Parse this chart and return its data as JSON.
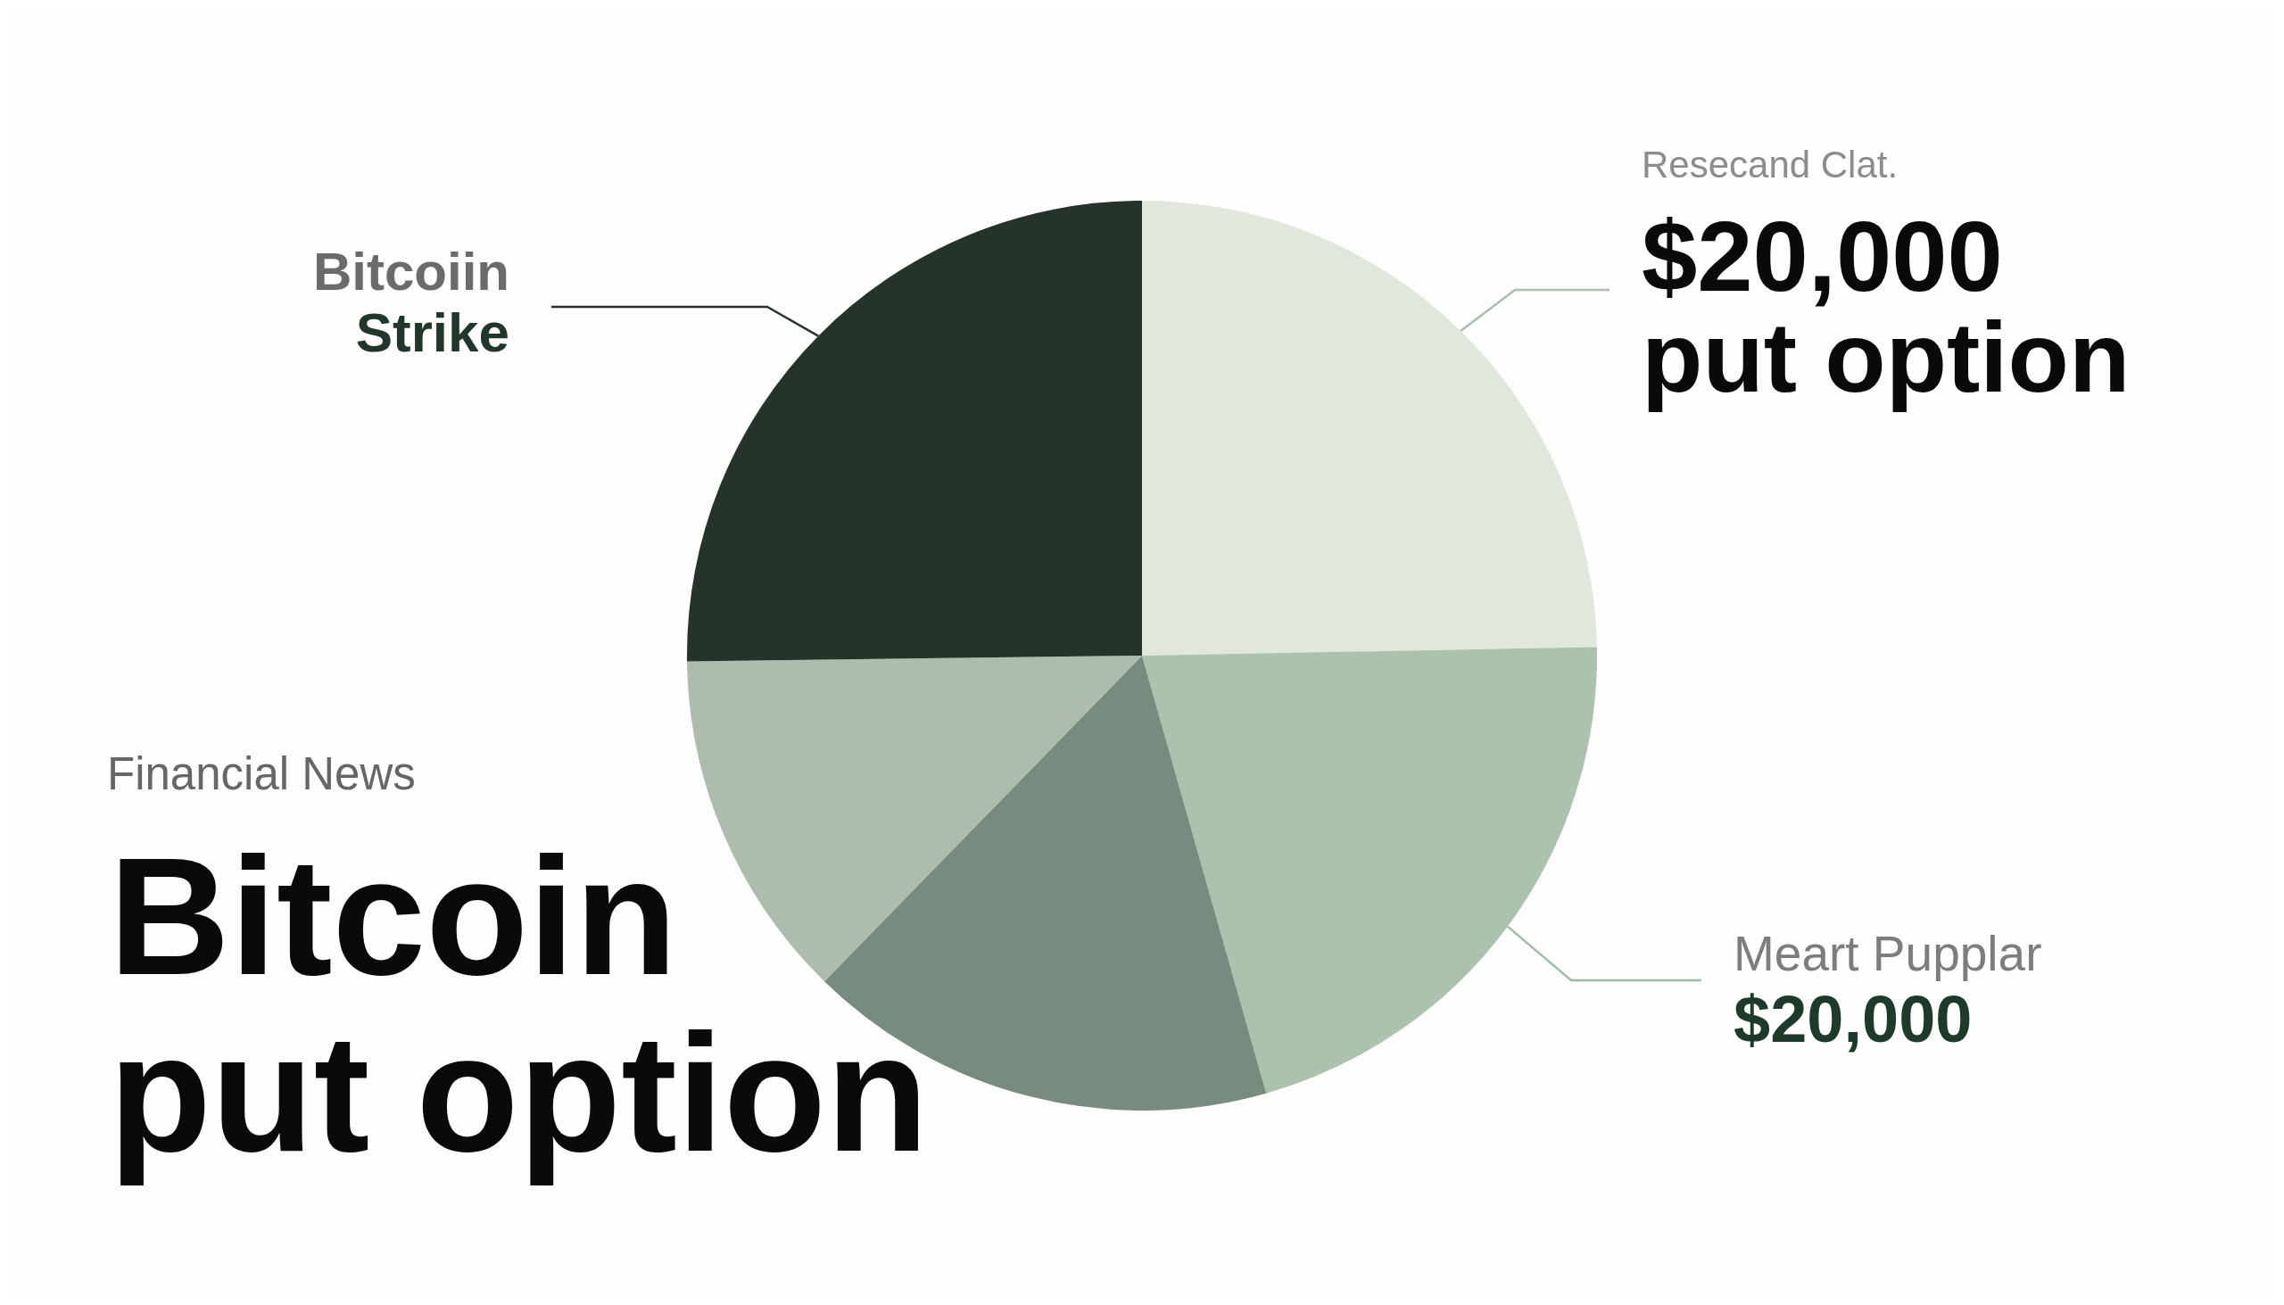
{
  "chart_data": {
    "type": "pie",
    "title": "Bitcoin put option",
    "subtitle": "Financial News",
    "categories": [
      "Resecand Clat.\n$20,000 put option",
      "Meart Pupplar\n$20,000",
      null,
      null,
      "Bitcoiin\nStrike"
    ],
    "values": [
      24.7,
      20.9,
      16.7,
      12.5,
      25.2
    ],
    "colors": [
      "#e1e7dd",
      "#aac2ae",
      "#778c7e",
      "#aebcad",
      "#25332b"
    ]
  }
}
